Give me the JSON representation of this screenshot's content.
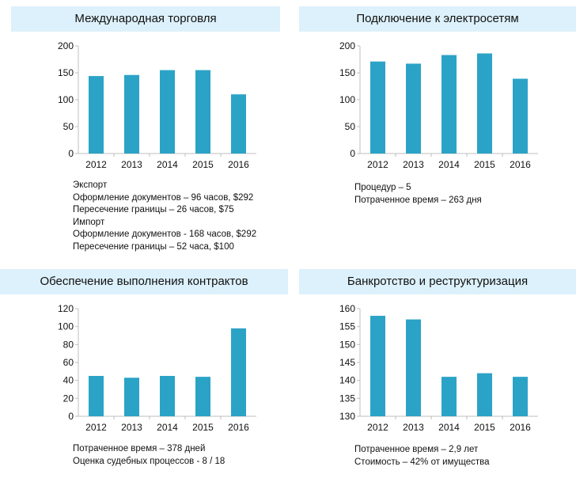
{
  "colors": {
    "bar": "#2ba3c6",
    "title_bg": "#dcf1fb",
    "axis": "#bfbfbf"
  },
  "chart_data": [
    {
      "type": "bar",
      "title": "Международная торговля",
      "categories": [
        "2012",
        "2013",
        "2014",
        "2015",
        "2016"
      ],
      "values": [
        144,
        146,
        155,
        155,
        110
      ],
      "ylim": [
        0,
        200
      ],
      "yticks": [
        "0",
        "50",
        "100",
        "150",
        "200"
      ],
      "notes": [
        "Экспорт",
        "Оформление документов – 96 часов, $292",
        "Пересечение границы – 26 часов, $75",
        "Импорт",
        "Оформление документов -  168 часов, $292",
        "Пересечение границы – 52 часа, $100"
      ]
    },
    {
      "type": "bar",
      "title": "Подключение к электросетям",
      "categories": [
        "2012",
        "2013",
        "2014",
        "2015",
        "2016"
      ],
      "values": [
        171,
        167,
        183,
        186,
        139
      ],
      "ylim": [
        0,
        200
      ],
      "yticks": [
        "0",
        "50",
        "100",
        "150",
        "200"
      ],
      "notes": [
        "Процедур – 5",
        "Потраченное время – 263 дня"
      ]
    },
    {
      "type": "bar",
      "title": "Обеспечение выполнения контрактов",
      "categories": [
        "2012",
        "2013",
        "2014",
        "2015",
        "2016"
      ],
      "values": [
        45,
        43,
        45,
        44,
        98
      ],
      "ylim": [
        0,
        120
      ],
      "yticks": [
        "0",
        "20",
        "40",
        "60",
        "80",
        "100",
        "120"
      ],
      "notes": [
        "Потраченное время – 378 дней",
        "Оценка судебных процессов - 8 / 18"
      ]
    },
    {
      "type": "bar",
      "title": "Банкротство и реструктуризация",
      "categories": [
        "2012",
        "2013",
        "2014",
        "2015",
        "2016"
      ],
      "values": [
        158,
        157,
        141,
        142,
        141
      ],
      "ylim": [
        130,
        160
      ],
      "yticks": [
        "130",
        "135",
        "140",
        "145",
        "150",
        "155",
        "160"
      ],
      "notes": [
        "Потраченное время – 2,9 лет",
        "Стоимость – 42% от имущества"
      ]
    }
  ]
}
